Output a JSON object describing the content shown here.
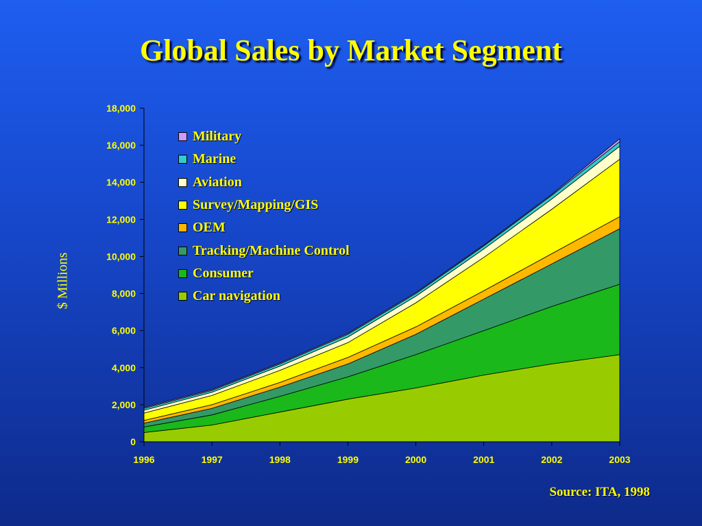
{
  "slide": {
    "title": "Global Sales by Market Segment",
    "source": "Source: ITA, 1998"
  },
  "chart_data": {
    "type": "area",
    "stacked": true,
    "title": "Global Sales by Market Segment",
    "xlabel": "",
    "ylabel": "$ Millions",
    "x": [
      "1996",
      "1997",
      "1998",
      "1999",
      "2000",
      "2001",
      "2002",
      "2003"
    ],
    "ylim": [
      0,
      18000
    ],
    "yticks": [
      0,
      2000,
      4000,
      6000,
      8000,
      10000,
      12000,
      14000,
      16000,
      18000
    ],
    "ytick_labels": [
      "0",
      "2,000",
      "4,000",
      "6,000",
      "8,000",
      "10,000",
      "12,000",
      "14,000",
      "16,000",
      "18,000"
    ],
    "grid": false,
    "legend": "top-left",
    "series": [
      {
        "name": "Car navigation",
        "color": "#99cc00",
        "values": [
          500,
          900,
          1600,
          2300,
          2900,
          3600,
          4200,
          4700
        ]
      },
      {
        "name": "Consumer",
        "color": "#1ab81a",
        "values": [
          300,
          550,
          850,
          1200,
          1800,
          2400,
          3100,
          3800
        ]
      },
      {
        "name": "Tracking/Machine Control",
        "color": "#339966",
        "values": [
          200,
          350,
          500,
          700,
          1100,
          1700,
          2300,
          3000
        ]
      },
      {
        "name": "OEM",
        "color": "#ffb800",
        "values": [
          150,
          200,
          250,
          350,
          400,
          450,
          550,
          650
        ]
      },
      {
        "name": "Survey/Mapping/GIS",
        "color": "#ffff00",
        "values": [
          400,
          500,
          650,
          800,
          1300,
          1800,
          2400,
          3100
        ]
      },
      {
        "name": "Aviation",
        "color": "#ffffcc",
        "values": [
          150,
          170,
          230,
          300,
          350,
          450,
          550,
          700
        ]
      },
      {
        "name": "Marine",
        "color": "#33cccc",
        "values": [
          100,
          100,
          120,
          150,
          150,
          170,
          200,
          250
        ]
      },
      {
        "name": "Military",
        "color": "#cc99ff",
        "values": [
          50,
          50,
          50,
          50,
          50,
          50,
          50,
          150
        ]
      }
    ]
  }
}
